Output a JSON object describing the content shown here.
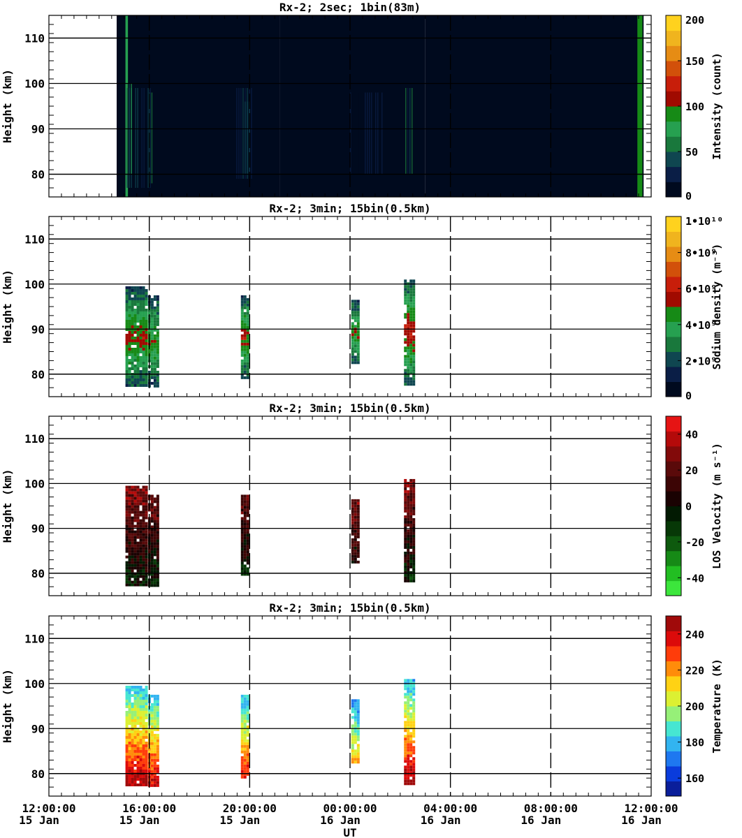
{
  "figure": {
    "xlabel": "UT",
    "x_ticks": [
      {
        "time": "12:00:00",
        "date": "15 Jan"
      },
      {
        "time": "16:00:00",
        "date": "15 Jan"
      },
      {
        "time": "20:00:00",
        "date": "15 Jan"
      },
      {
        "time": "00:00:00",
        "date": "16 Jan"
      },
      {
        "time": "04:00:00",
        "date": "16 Jan"
      },
      {
        "time": "08:00:00",
        "date": "16 Jan"
      },
      {
        "time": "12:00:00",
        "date": "16 Jan"
      }
    ]
  },
  "chart_data": [
    {
      "type": "heatmap",
      "title": "Rx-2;  2sec; 1bin(83m)",
      "xlabel": "",
      "ylabel": "Height (km)",
      "xlim": [
        "15 Jan 12:00:00",
        "16 Jan 12:00:00"
      ],
      "ylim": [
        75,
        115
      ],
      "yticks": [
        80,
        90,
        100,
        110
      ],
      "colorbar": {
        "label": "Intensity (count)",
        "range": [
          0,
          200
        ],
        "tick_values": [
          0,
          50,
          100,
          150,
          200
        ],
        "tick_labels": [
          "0",
          "50",
          "100",
          "150",
          "200"
        ],
        "colors": [
          "#000a1e",
          "#0a1e46",
          "#0f4650",
          "#19783c",
          "#26a050",
          "#168a16",
          "#a00a00",
          "#c81e0a",
          "#d2500a",
          "#e68c14",
          "#f0b41e",
          "#ffd21e"
        ]
      },
      "blocks": [
        {
          "t_start": 14.7,
          "t_end": 21.2,
          "h_bottom": 75,
          "h_top": 115,
          "value": 5
        },
        {
          "t_start": 21.2,
          "t_end": 27.0,
          "h_bottom": 75,
          "h_top": 115,
          "value": 5
        },
        {
          "t_start": 27.0,
          "t_end": 35.7,
          "h_bottom": 75,
          "h_top": 115,
          "value": 5
        }
      ],
      "edges": [
        {
          "t_start": 15.05,
          "t_end": 15.15,
          "h_bottom": 75,
          "h_top": 115,
          "value": 75
        },
        {
          "t_start": 35.45,
          "t_end": 35.65,
          "h_bottom": 75,
          "h_top": 115,
          "value": 85
        }
      ],
      "streaks": [
        {
          "t_start": 15.1,
          "t_end": 16.1,
          "h_bottom": 77,
          "h_top": 99,
          "value": 45
        },
        {
          "t_start": 15.1,
          "t_end": 15.3,
          "h_bottom": 80,
          "h_top": 100,
          "value": 70
        },
        {
          "t_start": 16.0,
          "t_end": 16.2,
          "h_bottom": 78,
          "h_top": 98,
          "value": 65
        },
        {
          "t_start": 19.3,
          "t_end": 20.1,
          "h_bottom": 79,
          "h_top": 99,
          "value": 40
        },
        {
          "t_start": 19.8,
          "t_end": 20.0,
          "h_bottom": 80,
          "h_top": 96,
          "value": 65
        },
        {
          "t_start": 24.0,
          "t_end": 25.4,
          "h_bottom": 80,
          "h_top": 98,
          "value": 30
        },
        {
          "t_start": 26.2,
          "t_end": 26.5,
          "h_bottom": 80,
          "h_top": 99,
          "value": 55
        }
      ]
    },
    {
      "type": "heatmap",
      "title": "Rx-2; 3min; 15bin(0.5km)",
      "xlabel": "",
      "ylabel": "Height (km)",
      "xlim": [
        "15 Jan 12:00:00",
        "16 Jan 12:00:00"
      ],
      "ylim": [
        75,
        115
      ],
      "yticks": [
        80,
        90,
        100,
        110
      ],
      "colorbar": {
        "label": "Sodium density (m⁻³)",
        "range": [
          0,
          10000000000
        ],
        "tick_values": [
          0,
          2000000000,
          4000000000,
          6000000000,
          8000000000,
          10000000000
        ],
        "tick_labels": [
          "0",
          "2•10⁹",
          "4•10⁹",
          "6•10⁹",
          "8•10⁹",
          "1•10¹⁰"
        ],
        "colors": [
          "#000a1e",
          "#0a1e46",
          "#0f4650",
          "#19783c",
          "#26a050",
          "#168a16",
          "#a00a00",
          "#c81e0a",
          "#d2500a",
          "#e68c14",
          "#f0b41e",
          "#ffd21e"
        ]
      },
      "blocks": [
        {
          "t_start": 15.05,
          "t_end": 15.85,
          "h_bottom": 77.5,
          "h_top": 99.5,
          "value": 4200000000
        },
        {
          "t_start": 15.95,
          "t_end": 16.35,
          "h_bottom": 77.5,
          "h_top": 97.5,
          "value": 3800000000
        },
        {
          "t_start": 19.65,
          "t_end": 19.95,
          "h_bottom": 79.5,
          "h_top": 97.5,
          "value": 4300000000
        },
        {
          "t_start": 24.05,
          "t_end": 24.35,
          "h_bottom": 82.5,
          "h_top": 96.5,
          "value": 3900000000
        },
        {
          "t_start": 26.15,
          "t_end": 26.55,
          "h_bottom": 78.0,
          "h_top": 101.0,
          "value": 4600000000
        }
      ]
    },
    {
      "type": "heatmap",
      "title": "Rx-2; 3min; 15bin(0.5km)",
      "xlabel": "",
      "ylabel": "Height (km)",
      "xlim": [
        "15 Jan 12:00:00",
        "16 Jan 12:00:00"
      ],
      "ylim": [
        75,
        115
      ],
      "yticks": [
        80,
        90,
        100,
        110
      ],
      "colorbar": {
        "label": "LOS Velocity (m s⁻¹)",
        "range": [
          -50,
          50
        ],
        "tick_values": [
          -40,
          -20,
          0,
          20,
          40
        ],
        "tick_labels": [
          "-40",
          "-20",
          "0",
          "20",
          "40"
        ],
        "colors": [
          "#3ce63c",
          "#22be22",
          "#168a16",
          "#0e5a0e",
          "#073807",
          "#021a02",
          "#1a0202",
          "#3c0505",
          "#5a0a0a",
          "#820a0a",
          "#b40a0a",
          "#e61414"
        ]
      },
      "blocks": [
        {
          "t_start": 15.05,
          "t_end": 15.85,
          "h_bottom": 77.5,
          "h_top": 99.5,
          "value": 12
        },
        {
          "t_start": 15.95,
          "t_end": 16.35,
          "h_bottom": 77.5,
          "h_top": 97.5,
          "value": 8
        },
        {
          "t_start": 19.65,
          "t_end": 19.95,
          "h_bottom": 79.5,
          "h_top": 97.5,
          "value": 6
        },
        {
          "t_start": 24.05,
          "t_end": 24.35,
          "h_bottom": 82.5,
          "h_top": 96.5,
          "value": 14
        },
        {
          "t_start": 26.15,
          "t_end": 26.55,
          "h_bottom": 78.0,
          "h_top": 101.0,
          "value": 10
        }
      ]
    },
    {
      "type": "heatmap",
      "title": "Rx-2; 3min; 15bin(0.5km)",
      "xlabel": "UT",
      "ylabel": "Height (km)",
      "xlim": [
        "15 Jan 12:00:00",
        "16 Jan 12:00:00"
      ],
      "ylim": [
        75,
        115
      ],
      "yticks": [
        80,
        90,
        100,
        110
      ],
      "colorbar": {
        "label": "Temperature (K)",
        "range": [
          150,
          250
        ],
        "tick_values": [
          160,
          180,
          200,
          220,
          240
        ],
        "tick_labels": [
          "160",
          "180",
          "200",
          "220",
          "240"
        ],
        "colors": [
          "#0a1e9a",
          "#0a3cdc",
          "#1e78f0",
          "#32b4f0",
          "#46e6d2",
          "#96f078",
          "#dcf032",
          "#ffd214",
          "#ff8c0a",
          "#ff3c0a",
          "#dc0a0a",
          "#a00a0a"
        ]
      },
      "blocks": [
        {
          "t_start": 15.05,
          "t_end": 15.85,
          "h_bottom": 77.5,
          "h_top": 99.5,
          "value": 215
        },
        {
          "t_start": 15.95,
          "t_end": 16.35,
          "h_bottom": 77.5,
          "h_top": 97.5,
          "value": 212
        },
        {
          "t_start": 19.65,
          "t_end": 19.95,
          "h_bottom": 79.5,
          "h_top": 97.5,
          "value": 208
        },
        {
          "t_start": 24.05,
          "t_end": 24.35,
          "h_bottom": 82.5,
          "h_top": 96.5,
          "value": 195
        },
        {
          "t_start": 26.15,
          "t_end": 26.55,
          "h_bottom": 78.0,
          "h_top": 101.0,
          "value": 214
        }
      ]
    }
  ]
}
